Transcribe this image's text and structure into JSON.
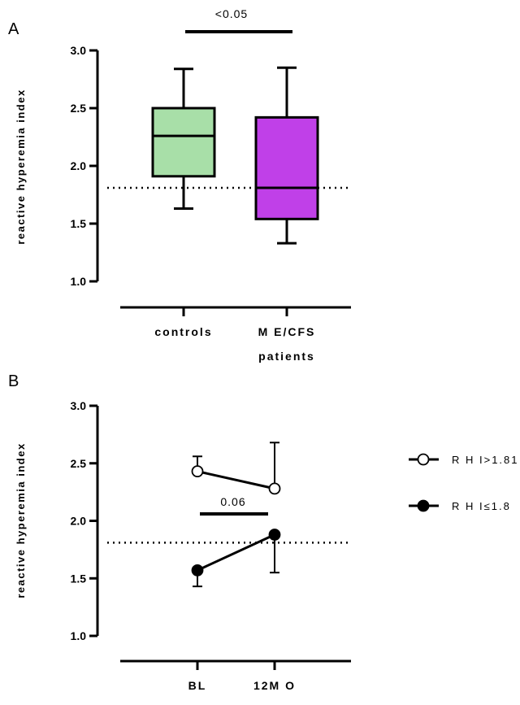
{
  "chart_data": [
    {
      "panel": "A",
      "type": "box",
      "ylabel": "reactive hyperemia index",
      "ylim": [
        1.0,
        3.0
      ],
      "yticks": [
        1.0,
        1.5,
        2.0,
        2.5,
        3.0
      ],
      "ytick_labels": [
        "1.0",
        "1.5",
        "2.0",
        "2.5",
        "3.0"
      ],
      "categories": [
        "controls",
        "ME/CFS patients"
      ],
      "category_label_lines": [
        [
          "controls"
        ],
        [
          "M E/CFS",
          "patients"
        ]
      ],
      "boxes": [
        {
          "name": "controls",
          "min": 1.63,
          "q1": 1.91,
          "median": 2.26,
          "q3": 2.5,
          "max": 2.84,
          "color": "#a8dfa8"
        },
        {
          "name": "ME/CFS patients",
          "min": 1.33,
          "q1": 1.54,
          "median": 1.81,
          "q3": 2.42,
          "max": 2.85,
          "color": "#c040e8"
        }
      ],
      "reference_line": 1.81,
      "significance": {
        "label": "<0.05",
        "from": 0,
        "to": 1,
        "y": 3.17
      }
    },
    {
      "panel": "B",
      "type": "line",
      "ylabel": "reactive hyperemia index",
      "ylim": [
        1.0,
        3.0
      ],
      "yticks": [
        1.0,
        1.5,
        2.0,
        2.5,
        3.0
      ],
      "ytick_labels": [
        "1.0",
        "1.5",
        "2.0",
        "2.5",
        "3.0"
      ],
      "categories": [
        "BL",
        "12M O"
      ],
      "series": [
        {
          "name": "R H I>1.81",
          "marker": "open-circle",
          "values": [
            2.43,
            2.28
          ],
          "err_upper": [
            2.56,
            2.68
          ],
          "err_lower": [
            null,
            null
          ]
        },
        {
          "name": "R H I≤1.8",
          "marker": "filled-circle",
          "values": [
            1.57,
            1.88
          ],
          "err_upper": [
            null,
            null
          ],
          "err_lower": [
            1.43,
            1.55
          ]
        }
      ],
      "reference_line": 1.81,
      "significance": {
        "label": "0.06",
        "from": 0,
        "to": 1,
        "y": 2.06
      },
      "legend_position": "right"
    }
  ]
}
